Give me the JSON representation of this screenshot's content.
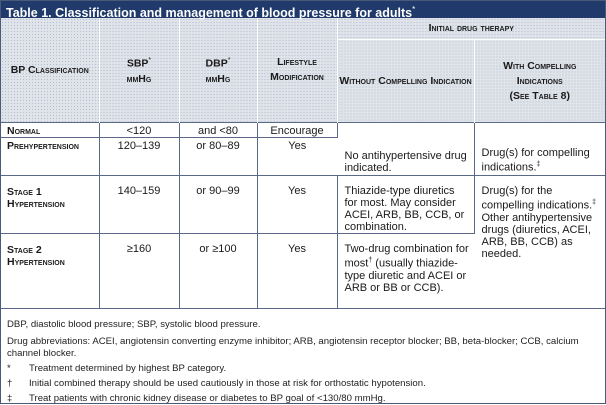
{
  "table": {
    "title": "Table 1. Classification and management of blood pressure for adults",
    "title_mark": "*",
    "headers": {
      "initial_therapy": "Initial drug therapy",
      "bp_classification": "BP Classification",
      "sbp": "SBP",
      "sbp_mark": "*",
      "dbp": "DBP",
      "dbp_mark": "*",
      "unit": "mmHg",
      "lifestyle": "Lifestyle Modification",
      "without": "Without Compelling Indication",
      "with_line1": "With Compelling",
      "with_line2": "Indications",
      "with_line3": "(See Table 8)"
    },
    "rows": [
      {
        "classification": "Normal",
        "sbp": "<120",
        "dbp": "and <80",
        "lifestyle": "Encourage"
      },
      {
        "classification": "Prehypertension",
        "sbp": "120–139",
        "dbp": "or 80–89",
        "lifestyle": "Yes",
        "without": "No antihypertensive drug indicated.",
        "with": "Drug(s) for compelling indications.",
        "with_mark": "‡"
      },
      {
        "classification": "Stage 1 Hypertension",
        "sbp": "140–159",
        "dbp": "or 90–99",
        "lifestyle": "Yes",
        "without": "Thiazide-type diuretics for most. May consider ACEI, ARB, BB, CCB, or combination.",
        "with_a": "Drug(s) for the compelling indications.",
        "with_mark": "‡",
        "with_b": "Other antihypertensive drugs (diuretics, ACEI, ARB, BB, CCB) as needed."
      },
      {
        "classification": "Stage 2 Hypertension",
        "sbp": "≥160",
        "dbp": "or ≥100",
        "lifestyle": "Yes",
        "without_a": "Two-drug combination for most",
        "without_mark": "†",
        "without_b": " (usually thiazide-type diuretic and ACEI or ARB or BB or CCB)."
      }
    ]
  },
  "notes": {
    "abbrev1": "DBP, diastolic blood pressure; SBP, systolic blood pressure.",
    "abbrev2": "Drug abbreviations: ACEI, angiotensin converting enzyme inhibitor; ARB, angiotensin receptor blocker; BB, beta-blocker; CCB, calcium channel blocker.",
    "footnotes": [
      {
        "symbol": "*",
        "text": "Treatment determined by highest BP category."
      },
      {
        "symbol": "†",
        "text": "Initial combined therapy should be used cautiously in those at risk for orthostatic hypotension."
      },
      {
        "symbol": "‡",
        "text": "Treat patients with chronic kidney disease or diabetes to BP goal of <130/80 mmHg."
      }
    ]
  }
}
